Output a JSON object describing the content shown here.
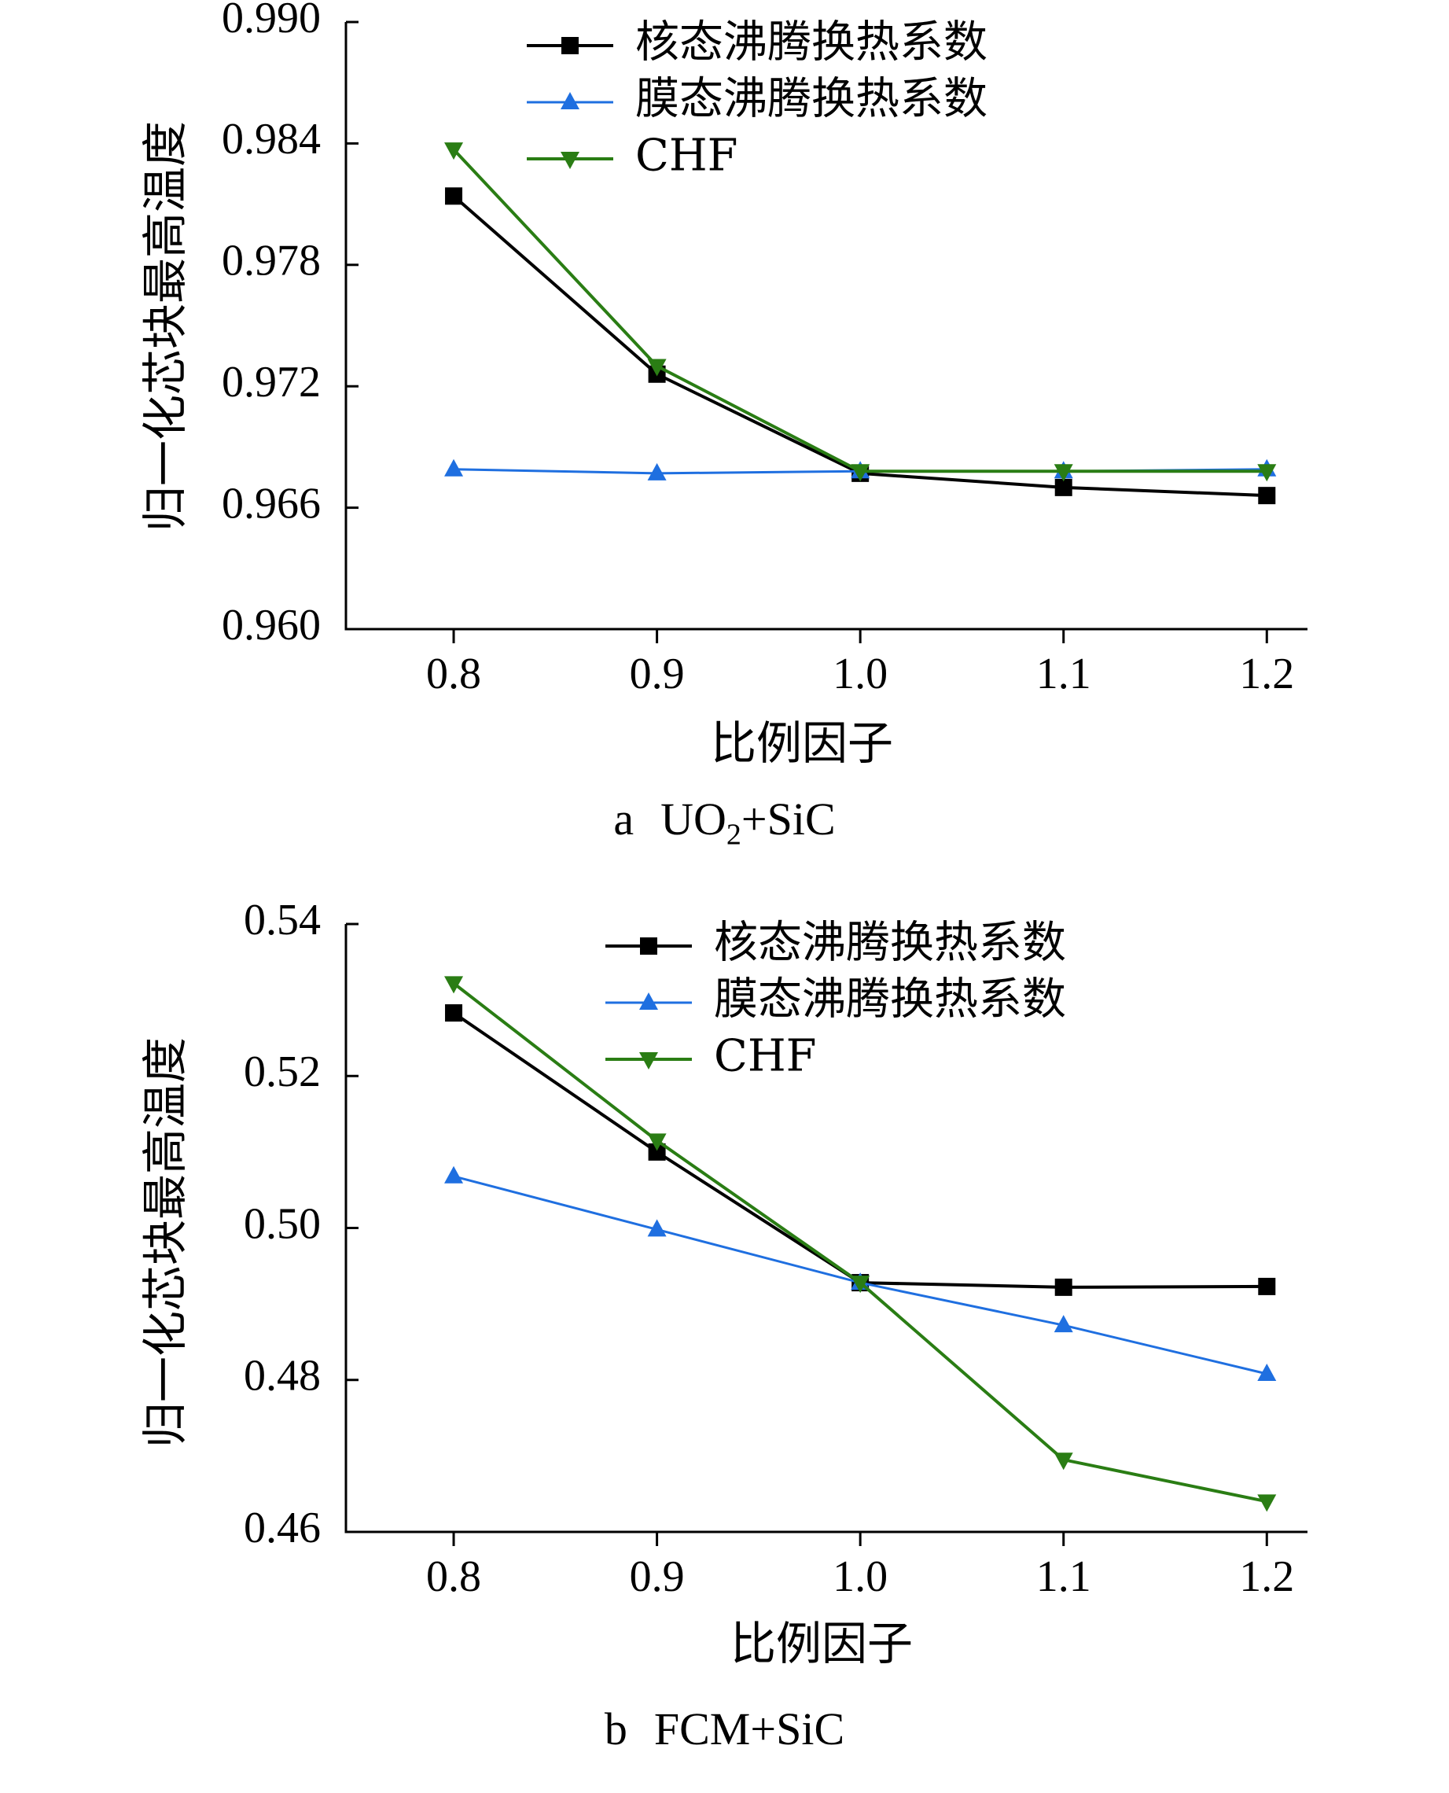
{
  "colors": {
    "nucleate": "#000000",
    "film": "#1f6fe0",
    "chf": "#2a7d14",
    "axis": "#000000"
  },
  "chart_data": [
    {
      "type": "line",
      "caption_letter": "a",
      "caption_main": "UO",
      "caption_sub": "2",
      "caption_tail": "+SiC",
      "xlabel": "比例因子",
      "ylabel": "归一化芯块最高温度",
      "x": [
        0.8,
        0.9,
        1.0,
        1.1,
        1.2
      ],
      "x_tick_labels": [
        "0.8",
        "0.9",
        "1.0",
        "1.1",
        "1.2"
      ],
      "xlim": [
        0.747,
        1.22
      ],
      "ylim": [
        0.96,
        0.99
      ],
      "y_ticks": [
        0.96,
        0.966,
        0.972,
        0.978,
        0.984,
        0.99
      ],
      "y_tick_labels": [
        "0.960",
        "0.966",
        "0.972",
        "0.978",
        "0.984",
        "0.990"
      ],
      "legend_position": "top-right",
      "series": [
        {
          "name": "核态沸腾换热系数",
          "marker": "square",
          "color_key": "nucleate",
          "values": [
            0.9814,
            0.9726,
            0.9677,
            0.967,
            0.9666
          ]
        },
        {
          "name": "膜态沸腾换热系数",
          "marker": "triangle-up",
          "color_key": "film",
          "values": [
            0.9679,
            0.9677,
            0.9678,
            0.9678,
            0.9679
          ]
        },
        {
          "name": "CHF",
          "marker": "triangle-down",
          "color_key": "chf",
          "values": [
            0.9837,
            0.973,
            0.9678,
            0.9678,
            0.9678
          ]
        }
      ]
    },
    {
      "type": "line",
      "caption_letter": "b",
      "caption_main": "FCM+SiC",
      "caption_sub": "",
      "caption_tail": "",
      "xlabel": "比例因子",
      "ylabel": "归一化芯块最高温度",
      "x": [
        0.8,
        0.9,
        1.0,
        1.1,
        1.2
      ],
      "x_tick_labels": [
        "0.8",
        "0.9",
        "1.0",
        "1.1",
        "1.2"
      ],
      "xlim": [
        0.747,
        1.22
      ],
      "ylim": [
        0.46,
        0.54
      ],
      "y_ticks": [
        0.46,
        0.48,
        0.5,
        0.52,
        0.54
      ],
      "y_tick_labels": [
        "0.46",
        "0.48",
        "0.50",
        "0.52",
        "0.54"
      ],
      "legend_position": "top-right",
      "series": [
        {
          "name": "核态沸腾换热系数",
          "marker": "square",
          "color_key": "nucleate",
          "values": [
            0.5283,
            0.51,
            0.4928,
            0.4922,
            0.4923
          ]
        },
        {
          "name": "膜态沸腾换热系数",
          "marker": "triangle-up",
          "color_key": "film",
          "values": [
            0.5068,
            0.4998,
            0.4928,
            0.4872,
            0.4808
          ]
        },
        {
          "name": "CHF",
          "marker": "triangle-down",
          "color_key": "chf",
          "values": [
            0.5322,
            0.5115,
            0.4928,
            0.4695,
            0.464
          ]
        }
      ]
    }
  ]
}
